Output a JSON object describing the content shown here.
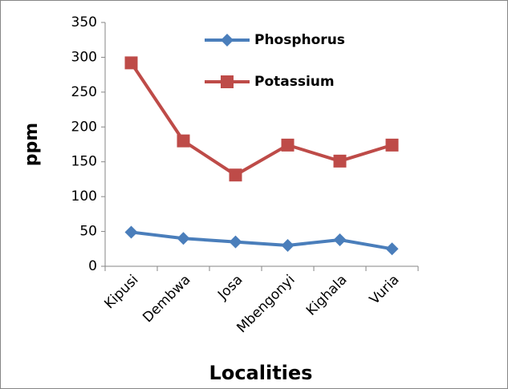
{
  "chart_data": {
    "type": "line",
    "x_label": "Localities",
    "y_label": "ppm",
    "categories": [
      "Kipusi",
      "Dembwa",
      "Josa",
      "Mbengonyi",
      "Kighala",
      "Vuria"
    ],
    "series": [
      {
        "name": "Phosphorus",
        "color": "#4a7ebb",
        "marker": "diamond",
        "values": [
          49,
          40,
          35,
          30,
          38,
          25
        ]
      },
      {
        "name": "Potassium",
        "color": "#be4b48",
        "marker": "square",
        "values": [
          292,
          180,
          131,
          174,
          151,
          174
        ]
      }
    ],
    "ylim": [
      0,
      350
    ],
    "yticks": [
      0,
      50,
      100,
      150,
      200,
      250,
      300,
      350
    ],
    "grid": false,
    "legend": "top"
  }
}
